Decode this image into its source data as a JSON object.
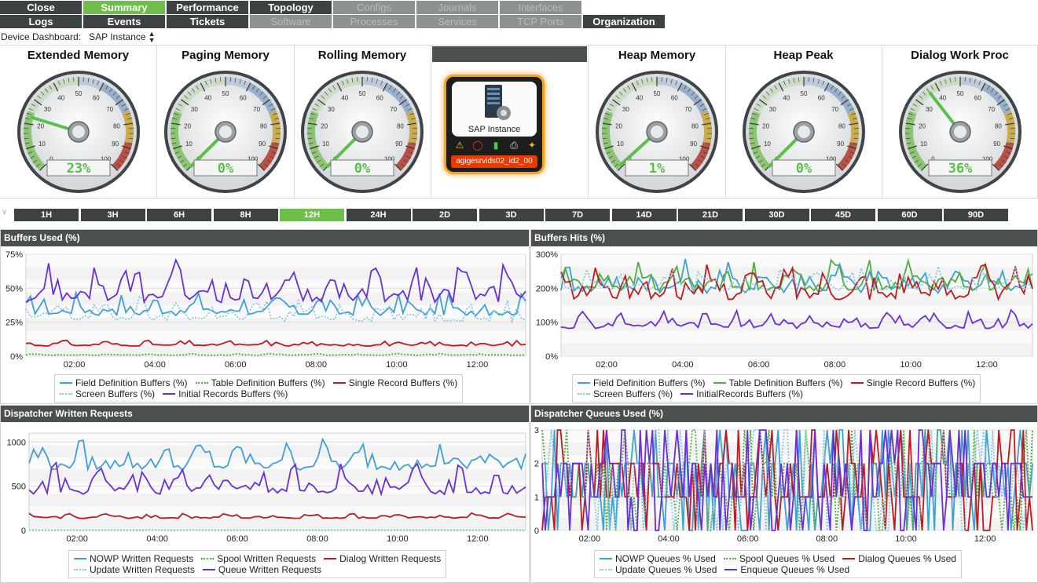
{
  "nav": {
    "row1": [
      {
        "label": "Close",
        "state": "normal"
      },
      {
        "label": "Summary",
        "state": "active"
      },
      {
        "label": "Performance",
        "state": "normal"
      },
      {
        "label": "Topology",
        "state": "normal"
      },
      {
        "label": "Configs",
        "state": "disabled"
      },
      {
        "label": "Journals",
        "state": "disabled"
      },
      {
        "label": "Interfaces",
        "state": "disabled"
      }
    ],
    "row2": [
      {
        "label": "Logs",
        "state": "normal"
      },
      {
        "label": "Events",
        "state": "normal"
      },
      {
        "label": "Tickets",
        "state": "normal"
      },
      {
        "label": "Software",
        "state": "disabled"
      },
      {
        "label": "Processes",
        "state": "disabled"
      },
      {
        "label": "Services",
        "state": "disabled"
      },
      {
        "label": "TCP Ports",
        "state": "disabled"
      },
      {
        "label": "Organization",
        "state": "normal"
      }
    ]
  },
  "dashboard": {
    "label": "Device Dashboard:",
    "selected": "SAP Instance"
  },
  "gauges": [
    {
      "title": "Extended Memory",
      "value": 23,
      "display": "23%"
    },
    {
      "title": "Paging Memory",
      "value": 0,
      "display": "0%"
    },
    {
      "title": "Rolling Memory",
      "value": 0,
      "display": "0%"
    },
    {
      "title": "Heap Memory",
      "value": 1,
      "display": "1%"
    },
    {
      "title": "Heap Peak",
      "value": 0,
      "display": "0%"
    },
    {
      "title": "Dialog Work Proc",
      "value": 36,
      "display": "36%"
    }
  ],
  "gauge_ticks": [
    "0",
    "10",
    "20",
    "30",
    "40",
    "50",
    "60",
    "70",
    "80",
    "90",
    "100"
  ],
  "device": {
    "type_label": "SAP Instance",
    "name": "agigesrvids02_id2_00",
    "icons": [
      "warning-icon",
      "lifebuoy-icon",
      "bar-chart-icon",
      "printer-icon",
      "wrench-icon"
    ]
  },
  "time_ranges": [
    "1H",
    "3H",
    "6H",
    "8H",
    "12H",
    "24H",
    "2D",
    "3D",
    "7D",
    "14D",
    "21D",
    "30D",
    "45D",
    "60D",
    "90D"
  ],
  "time_range_selected": "12H",
  "colors": {
    "nav_dark": "#3d4242",
    "nav_active": "#6dbf4a",
    "series_blue": "#3ea0d4",
    "series_green": "#4fae3c",
    "series_red": "#c2191f",
    "series_lightblue": "#88c9e0",
    "series_purple": "#6a2fd6"
  },
  "chart_data": [
    {
      "title": "Buffers Used (%)",
      "type": "line",
      "x_ticks": [
        "02:00",
        "04:00",
        "06:00",
        "08:00",
        "10:00",
        "12:00"
      ],
      "y_ticks": [
        "0%",
        "25%",
        "50%",
        "75%"
      ],
      "ylim": [
        0,
        75
      ],
      "legend": [
        {
          "name": "Field Definition Buffers (%)",
          "color": "#3ea0d4",
          "style": "solid"
        },
        {
          "name": "Table Definition Buffers (%)",
          "color": "#4fae3c",
          "style": "dotted"
        },
        {
          "name": "Single Record Buffers (%)",
          "color": "#c2191f",
          "style": "solid"
        },
        {
          "name": "Screen Buffers (%)",
          "color": "#88c9e0",
          "style": "dotted"
        },
        {
          "name": "Initial Records Buffers (%)",
          "color": "#6a2fd6",
          "style": "solid"
        }
      ],
      "legend_rows": [
        3,
        2
      ],
      "series_ranges": [
        [
          20,
          48
        ],
        [
          0,
          2
        ],
        [
          5,
          12
        ],
        [
          15,
          45
        ],
        [
          22,
          72
        ]
      ]
    },
    {
      "title": "Buffers Hits (%)",
      "type": "line",
      "x_ticks": [
        "02:00",
        "04:00",
        "06:00",
        "08:00",
        "10:00",
        "12:00"
      ],
      "y_ticks": [
        "0%",
        "100%",
        "200%",
        "300%"
      ],
      "ylim": [
        0,
        300
      ],
      "legend": [
        {
          "name": "Field Definition Buffers (%)",
          "color": "#3ea0d4",
          "style": "solid"
        },
        {
          "name": "Table Definition Buffers (%)",
          "color": "#4fae3c",
          "style": "solid"
        },
        {
          "name": "Single Record Buffers (%)",
          "color": "#c2191f",
          "style": "solid"
        },
        {
          "name": "Screen Buffers (%)",
          "color": "#88c9e0",
          "style": "dotted"
        },
        {
          "name": "InitialRecords Buffers (%)",
          "color": "#6a2fd6",
          "style": "solid"
        }
      ],
      "legend_rows": [
        3,
        2
      ],
      "series_ranges": [
        [
          130,
          290
        ],
        [
          140,
          290
        ],
        [
          100,
          290
        ],
        [
          150,
          270
        ],
        [
          50,
          140
        ]
      ]
    },
    {
      "title": "Dispatcher Written Requests",
      "type": "line",
      "x_ticks": [
        "02:00",
        "04:00",
        "06:00",
        "08:00",
        "10:00",
        "12:00"
      ],
      "y_ticks": [
        "0",
        "500",
        "1000"
      ],
      "ylim": [
        0,
        1100
      ],
      "legend": [
        {
          "name": "NOWP Written Requests",
          "color": "#3ea0d4",
          "style": "solid"
        },
        {
          "name": "Spool Written Requests",
          "color": "#4fae3c",
          "style": "dotted"
        },
        {
          "name": "Dialog Written Requests",
          "color": "#c2191f",
          "style": "solid"
        },
        {
          "name": "Update Written Requests",
          "color": "#88c9e0",
          "style": "dotted"
        },
        {
          "name": "Queue Written Requests",
          "color": "#6a2fd6",
          "style": "solid"
        }
      ],
      "legend_rows": [
        3,
        2
      ],
      "series_ranges": [
        [
          480,
          1050
        ],
        [
          0,
          5
        ],
        [
          100,
          200
        ],
        [
          0,
          5
        ],
        [
          200,
          780
        ]
      ]
    },
    {
      "title": "Dispatcher Queues Used (%)",
      "type": "line",
      "x_ticks": [
        "02:00",
        "04:00",
        "06:00",
        "08:00",
        "10:00",
        "12:00"
      ],
      "y_ticks": [
        "0",
        "1",
        "2",
        "3"
      ],
      "ylim": [
        0,
        3
      ],
      "legend": [
        {
          "name": "NOWP Queues % Used",
          "color": "#3ea0d4",
          "style": "solid"
        },
        {
          "name": "Spool Queues % Used",
          "color": "#4fae3c",
          "style": "dotted"
        },
        {
          "name": "Dialog Queues % Used",
          "color": "#c2191f",
          "style": "solid"
        },
        {
          "name": "Update Queues % Used",
          "color": "#88c9e0",
          "style": "dotted"
        },
        {
          "name": "Enqueue Queues % Used",
          "color": "#6a2fd6",
          "style": "solid"
        }
      ],
      "legend_rows": [
        3,
        2
      ],
      "series_ranges": [
        [
          0,
          3
        ],
        [
          0,
          3
        ],
        [
          0,
          3
        ],
        [
          0,
          3
        ],
        [
          0,
          3
        ]
      ]
    }
  ]
}
